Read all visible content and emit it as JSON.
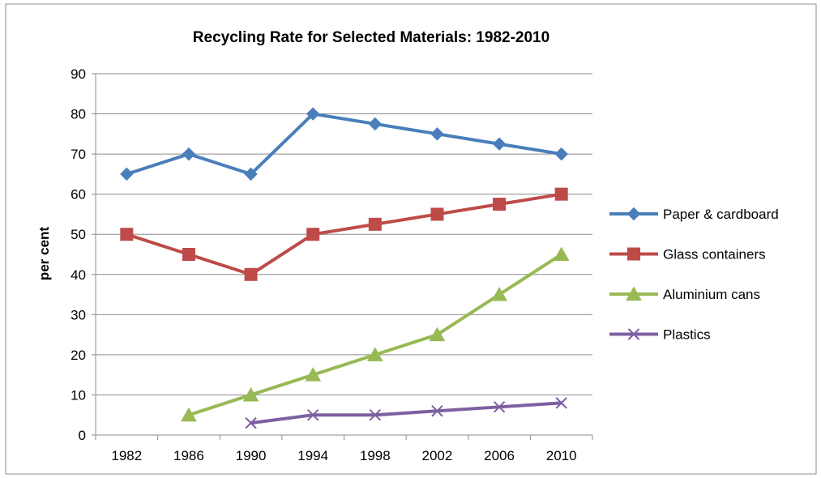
{
  "chart_data": {
    "type": "line",
    "title": "Recycling Rate for Selected Materials: 1982-2010",
    "xlabel": "",
    "ylabel": "per cent",
    "categories": [
      "1982",
      "1986",
      "1990",
      "1994",
      "1998",
      "2002",
      "2006",
      "2010"
    ],
    "ylim": [
      0,
      90
    ],
    "yticks": [
      "0",
      "10",
      "20",
      "30",
      "40",
      "50",
      "60",
      "70",
      "80",
      "90"
    ],
    "grid": "horizontal",
    "legend_position": "right",
    "series": [
      {
        "name": "Paper & cardboard",
        "color": "#4A7EBB",
        "marker": "diamond",
        "values": [
          65,
          70,
          65,
          80,
          77.5,
          75,
          72.5,
          70
        ]
      },
      {
        "name": "Glass containers",
        "color": "#BE4B48",
        "marker": "square",
        "values": [
          50,
          45,
          40,
          50,
          52.5,
          55,
          57.5,
          60
        ]
      },
      {
        "name": "Aluminium cans",
        "color": "#98B954",
        "marker": "triangle",
        "values": [
          null,
          5,
          10,
          15,
          20,
          25,
          35,
          45
        ]
      },
      {
        "name": "Plastics",
        "color": "#7D60A0",
        "marker": "x",
        "values": [
          null,
          null,
          3,
          5,
          5,
          6,
          7,
          8
        ]
      }
    ]
  }
}
